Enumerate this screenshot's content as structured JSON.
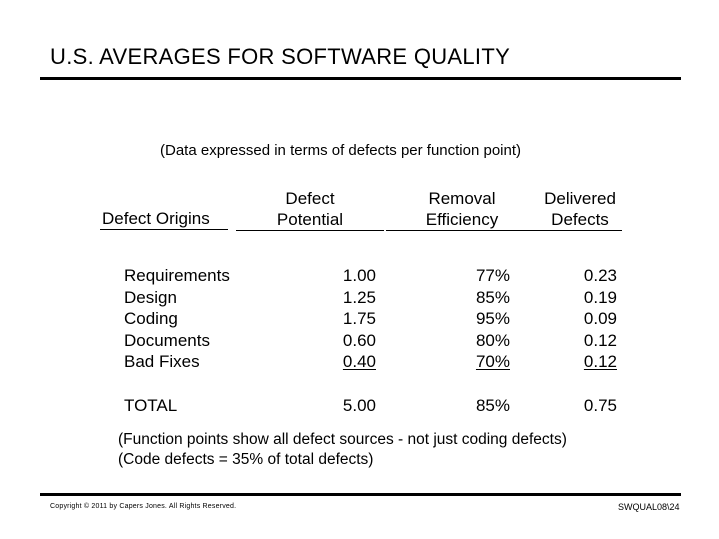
{
  "title": "U.S. AVERAGES FOR SOFTWARE QUALITY",
  "subtitle": "(Data expressed in terms of defects per function point)",
  "table": {
    "headers": {
      "origins": [
        "Defect Origins"
      ],
      "potential": [
        "Defect",
        "Potential"
      ],
      "efficiency": [
        "Removal",
        "Efficiency"
      ],
      "delivered": [
        "Delivered",
        "Defects"
      ]
    },
    "rows": [
      {
        "origin": "Requirements",
        "potential": "1.00",
        "efficiency": "77%",
        "delivered": "0.23"
      },
      {
        "origin": "Design",
        "potential": "1.25",
        "efficiency": "85%",
        "delivered": "0.19"
      },
      {
        "origin": "Coding",
        "potential": "1.75",
        "efficiency": "95%",
        "delivered": "0.09"
      },
      {
        "origin": "Documents",
        "potential": "0.60",
        "efficiency": "80%",
        "delivered": "0.12"
      },
      {
        "origin": "Bad Fixes",
        "potential": "0.40",
        "efficiency": "70%",
        "delivered": "0.12"
      }
    ],
    "total": {
      "origin": "TOTAL",
      "potential": "5.00",
      "efficiency": "85%",
      "delivered": "0.75"
    }
  },
  "notes": [
    "(Function points show all defect sources - not just coding defects)",
    "(Code defects = 35% of total defects)"
  ],
  "footer": {
    "copyright": "Copyright © 2011 by Capers Jones. All Rights Reserved.",
    "slide_id": "SWQUAL08\\24"
  }
}
